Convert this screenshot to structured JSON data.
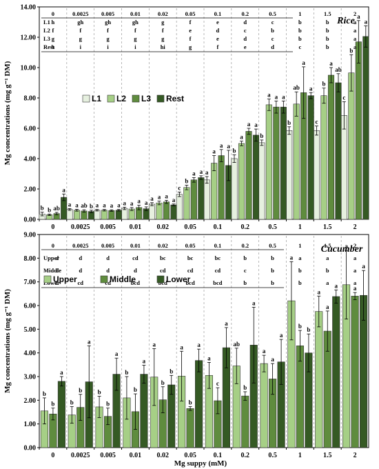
{
  "xlabel": "Mg suppy (mM)",
  "categories": [
    "0",
    "0.0025",
    "0.005",
    "0.01",
    "0.02",
    "0.05",
    "0.1",
    "0.2",
    "0.5",
    "1",
    "1.5",
    "2"
  ],
  "chart_data": [
    {
      "type": "bar",
      "title": "Rice",
      "ylabel": "Mg concentrations (mg g⁻¹ DM)",
      "ylim": [
        0,
        14
      ],
      "yticks": [
        "0.00",
        "2.00",
        "4.00",
        "6.00",
        "8.00",
        "10.00",
        "12.00",
        "14.00"
      ],
      "legend": "upper-left",
      "categories": [
        "0",
        "0.0025",
        "0.005",
        "0.01",
        "0.02",
        "0.05",
        "0.1",
        "0.2",
        "0.5",
        "1",
        "1.5",
        "2"
      ],
      "series": [
        {
          "name": "L1",
          "color": "#e6f0df",
          "values": [
            0.35,
            0.65,
            0.6,
            0.72,
            1.0,
            1.65,
            2.6,
            4.0,
            5.05,
            5.85,
            5.85,
            6.85
          ],
          "errors": [
            0.12,
            0.06,
            0.05,
            0.08,
            0.1,
            0.15,
            0.22,
            0.25,
            0.18,
            0.25,
            0.3,
            0.9
          ],
          "letters": [
            "b",
            "a",
            "a",
            "a",
            "a",
            "c",
            "a",
            "b",
            "b",
            "b",
            "c",
            "c"
          ]
        },
        {
          "name": "L2",
          "color": "#a6cf86",
          "values": [
            0.3,
            0.6,
            0.6,
            0.68,
            1.08,
            2.1,
            3.7,
            5.0,
            7.55,
            7.6,
            8.15,
            9.65
          ],
          "errors": [
            0.05,
            0.06,
            0.05,
            0.1,
            0.12,
            0.15,
            0.5,
            0.15,
            0.38,
            0.8,
            0.5,
            1.2
          ],
          "letters": [
            "b",
            "a",
            "a",
            "a",
            "a",
            "b",
            "a",
            "a",
            "a",
            "ab",
            "b",
            "b"
          ]
        },
        {
          "name": "L3",
          "color": "#5f8c3e",
          "values": [
            0.38,
            0.55,
            0.58,
            0.78,
            1.15,
            2.6,
            4.2,
            5.8,
            7.4,
            8.35,
            9.5,
            11.7
          ],
          "errors": [
            0.08,
            0.08,
            0.05,
            0.15,
            0.1,
            0.15,
            0.4,
            0.2,
            0.4,
            1.7,
            0.5,
            1.4
          ],
          "letters": [
            "ab",
            "ab",
            "a",
            "a",
            "a",
            "a",
            "a",
            "a",
            "a",
            "a",
            "a",
            "a"
          ]
        },
        {
          "name": "Rest",
          "color": "#355a24",
          "values": [
            1.45,
            0.52,
            0.6,
            0.7,
            0.95,
            2.75,
            3.55,
            5.55,
            7.4,
            8.15,
            9.0,
            12.05
          ],
          "errors": [
            0.22,
            0.08,
            0.05,
            0.12,
            0.06,
            0.12,
            1.0,
            0.4,
            0.4,
            0.2,
            0.6,
            0.7
          ],
          "letters": [
            "a",
            "b",
            "a",
            "a",
            "a",
            "a",
            "a",
            "a",
            "a",
            "a",
            "ab",
            "a"
          ]
        }
      ],
      "table": {
        "header": [
          "0",
          "0.0025",
          "0.005",
          "0.01",
          "0.02",
          "0.05",
          "0.1",
          "0.2",
          "0.5",
          "1",
          "1.5",
          "2"
        ],
        "rows": [
          {
            "label": "L1",
            "cells": [
              "h",
              "gh",
              "gh",
              "gh",
              "g",
              "f",
              "e",
              "d",
              "c",
              "b",
              "b",
              "a"
            ]
          },
          {
            "label": "L2",
            "cells": [
              "f",
              "f",
              "f",
              "f",
              "f",
              "e",
              "d",
              "c",
              "b",
              "b",
              "b",
              "a"
            ]
          },
          {
            "label": "L3",
            "cells": [
              "g",
              "g",
              "g",
              "g",
              "g",
              "f",
              "e",
              "d",
              "c",
              "b",
              "b",
              "a"
            ]
          },
          {
            "label": "Rest",
            "cells": [
              "h",
              "i",
              "i",
              "i",
              "hi",
              "g",
              "f",
              "e",
              "d",
              "c",
              "b",
              "a"
            ]
          }
        ]
      }
    },
    {
      "type": "bar",
      "title": "Cucumber",
      "ylabel": "Mg concentrations (mg g⁻¹ DM)",
      "ylim": [
        0,
        9
      ],
      "yticks": [
        "0.00",
        "1.00",
        "2.00",
        "3.00",
        "4.00",
        "5.00",
        "6.00",
        "7.00",
        "8.00",
        "9.00"
      ],
      "legend": "upper-left",
      "categories": [
        "0",
        "0.0025",
        "0.005",
        "0.01",
        "0.02",
        "0.05",
        "0.1",
        "0.2",
        "0.5",
        "1",
        "1.5",
        "2"
      ],
      "series": [
        {
          "name": "Upper",
          "color": "#a6cf86",
          "values": [
            1.55,
            1.38,
            1.72,
            2.1,
            2.98,
            3.02,
            3.05,
            3.45,
            3.55,
            6.2,
            5.75,
            6.88
          ],
          "errors": [
            0.55,
            0.35,
            0.45,
            0.9,
            1.2,
            1.05,
            0.55,
            0.75,
            0.35,
            1.65,
            0.65,
            1.45
          ],
          "letters": [
            "b",
            "b",
            "b",
            "b",
            "a",
            "a",
            "a",
            "ab",
            "a",
            "a",
            "a",
            "a"
          ]
        },
        {
          "name": "Middle",
          "color": "#5f8c3e",
          "values": [
            1.42,
            1.7,
            1.32,
            1.52,
            2.02,
            1.65,
            1.98,
            2.18,
            2.9,
            4.3,
            4.92,
            6.4
          ],
          "errors": [
            0.25,
            0.55,
            0.35,
            0.75,
            0.55,
            0.08,
            0.55,
            0.18,
            0.65,
            0.65,
            0.85,
            0.15
          ],
          "letters": [
            "b",
            "b",
            "b",
            "b",
            "b",
            "b",
            "c",
            "b",
            "a",
            "b",
            "a",
            "a"
          ]
        },
        {
          "name": "Lower",
          "color": "#355a24",
          "values": [
            2.8,
            2.78,
            3.1,
            3.1,
            2.65,
            3.68,
            4.22,
            4.33,
            3.62,
            4.0,
            6.38,
            6.43
          ],
          "errors": [
            0.2,
            1.52,
            0.68,
            0.38,
            0.4,
            0.48,
            0.85,
            1.6,
            0.95,
            0.8,
            0.28,
            1.05
          ],
          "letters": [
            "a",
            "a",
            "a",
            "a",
            "b",
            "a",
            "a",
            "a",
            "a",
            "b",
            "a",
            "a"
          ]
        }
      ],
      "table": {
        "header": [
          "0",
          "0.0025",
          "0.005",
          "0.01",
          "0.02",
          "0.05",
          "0.1",
          "0.2",
          "0.5",
          "1",
          "1.5",
          "2"
        ],
        "rows": [
          {
            "label": "Upper",
            "cells": [
              "d",
              "d",
              "d",
              "cd",
              "bc",
              "bc",
              "bc",
              "b",
              "b",
              "a",
              "a",
              "a"
            ]
          },
          {
            "label": "Middle",
            "cells": [
              "d",
              "d",
              "d",
              "d",
              "cd",
              "cd",
              "cd",
              "c",
              "b",
              "b",
              "b",
              "a"
            ]
          },
          {
            "label": "Lower",
            "cells": [
              "d",
              "cd",
              "cd",
              "bcd",
              "bcd",
              "bcd",
              "bcd",
              "b",
              "b",
              "b",
              "a",
              "a"
            ]
          }
        ]
      }
    }
  ]
}
